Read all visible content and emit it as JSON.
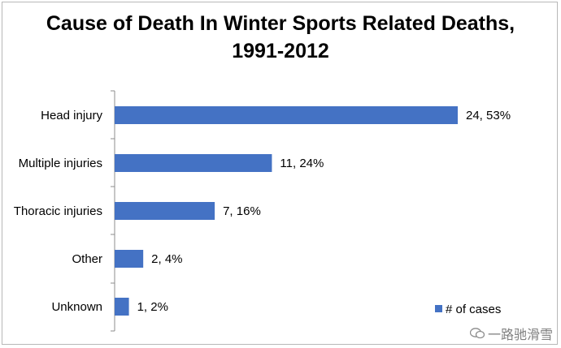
{
  "chart_data": {
    "type": "bar",
    "orientation": "horizontal",
    "title": "Cause of Death In Winter Sports Related Deaths,",
    "subtitle": "1991-2012",
    "categories": [
      "Head injury",
      "Multiple injuries",
      "Thoracic injuries",
      "Other",
      "Unknown"
    ],
    "series": [
      {
        "name": "# of cases",
        "values": [
          24,
          11,
          7,
          2,
          1
        ],
        "labels": [
          "24, 53%",
          "11, 24%",
          "7, 16%",
          "2, 4%",
          "1, 2%"
        ],
        "color": "#4472c4"
      }
    ],
    "xlim": [
      0,
      24
    ],
    "grid": false,
    "legend": "bottom-right"
  },
  "watermark": {
    "text": "一路驰滑雪",
    "icon": "wechat-icon"
  }
}
